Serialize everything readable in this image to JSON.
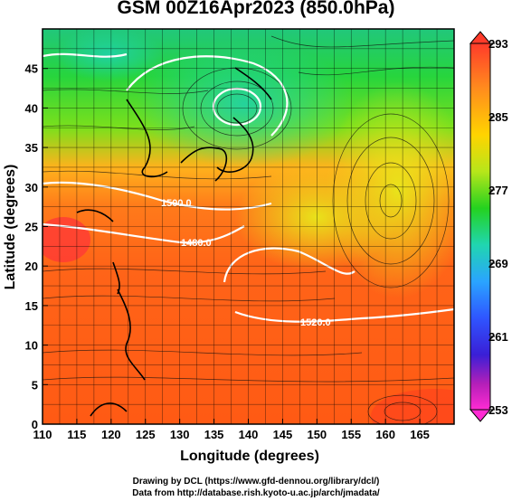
{
  "title": "GSM 00Z16Apr2023 (850.0hPa)",
  "x_axis": {
    "label": "Longitude (degrees)",
    "ticks": [
      "110",
      "115",
      "120",
      "125",
      "130",
      "135",
      "140",
      "145",
      "150",
      "155",
      "160",
      "165"
    ]
  },
  "y_axis": {
    "label": "Latitude (degrees)",
    "ticks": [
      "0",
      "5",
      "10",
      "15",
      "20",
      "25",
      "30",
      "35",
      "40",
      "45"
    ]
  },
  "colorbar": {
    "ticks": [
      "293",
      "285",
      "277",
      "269",
      "261",
      "253"
    ],
    "colors": [
      "#ff3b2a",
      "#ff8a1e",
      "#ffd400",
      "#b7e61a",
      "#24d21f",
      "#20d6b0",
      "#2aa4ff",
      "#2f55ff",
      "#3a1fd6",
      "#b51fb8",
      "#ff2bd3"
    ]
  },
  "contour_labels": [
    "1480.0",
    "1500.0",
    "1520.0"
  ],
  "credits": {
    "line1": "Drawing by DCL (https://www.gfd-dennou.org/library/dcl/)",
    "line2": "Data from http://database.rish.kyoto-u.ac.jp/arch/jmadata/"
  },
  "chart_data": {
    "type": "heatmap",
    "title": "GSM 00Z16Apr2023 (850.0hPa)",
    "xlabel": "Longitude (degrees)",
    "ylabel": "Latitude (degrees)",
    "xlim": [
      110,
      170
    ],
    "ylim": [
      0,
      50
    ],
    "colorbar_range": [
      253,
      293
    ],
    "contour_levels": [
      1480.0,
      1500.0,
      1520.0
    ],
    "overlays": [
      "temperature shading",
      "geopotential height contours",
      "wind streamlines",
      "coastlines"
    ]
  }
}
